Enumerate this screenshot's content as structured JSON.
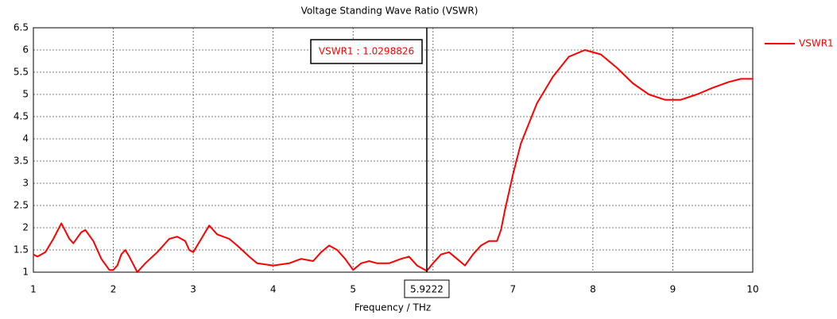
{
  "chart_data": {
    "type": "line",
    "title": "Voltage Standing Wave Ratio (VSWR)",
    "x_label": "Frequency / THz",
    "x": [
      1.0,
      1.05,
      1.15,
      1.25,
      1.35,
      1.45,
      1.5,
      1.6,
      1.65,
      1.75,
      1.85,
      1.95,
      2.0,
      2.05,
      2.1,
      2.15,
      2.2,
      2.3,
      2.4,
      2.55,
      2.7,
      2.8,
      2.9,
      2.95,
      3.0,
      3.1,
      3.2,
      3.3,
      3.45,
      3.55,
      3.7,
      3.8,
      4.0,
      4.2,
      4.35,
      4.5,
      4.6,
      4.7,
      4.8,
      4.9,
      5.0,
      5.1,
      5.2,
      5.3,
      5.45,
      5.6,
      5.7,
      5.8,
      5.9222,
      6.0,
      6.1,
      6.2,
      6.3,
      6.4,
      6.5,
      6.6,
      6.7,
      6.8,
      6.85,
      6.9,
      7.0,
      7.1,
      7.3,
      7.5,
      7.7,
      7.9,
      8.1,
      8.3,
      8.5,
      8.7,
      8.9,
      9.1,
      9.3,
      9.5,
      9.7,
      9.85,
      10.0
    ],
    "series": [
      {
        "name": "VSWR1",
        "color": "#ff0000",
        "values": [
          1.4,
          1.35,
          1.45,
          1.75,
          2.1,
          1.75,
          1.65,
          1.9,
          1.95,
          1.7,
          1.3,
          1.05,
          1.05,
          1.15,
          1.4,
          1.5,
          1.35,
          1.0,
          1.2,
          1.45,
          1.75,
          1.8,
          1.7,
          1.5,
          1.45,
          1.75,
          2.05,
          1.85,
          1.75,
          1.6,
          1.35,
          1.2,
          1.15,
          1.2,
          1.3,
          1.25,
          1.45,
          1.6,
          1.5,
          1.3,
          1.05,
          1.2,
          1.25,
          1.2,
          1.2,
          1.3,
          1.35,
          1.15,
          1.03,
          1.2,
          1.4,
          1.45,
          1.3,
          1.15,
          1.4,
          1.6,
          1.7,
          1.7,
          1.95,
          2.4,
          3.2,
          3.9,
          4.8,
          5.4,
          5.85,
          6.0,
          5.9,
          5.6,
          5.25,
          5.0,
          4.88,
          4.88,
          5.0,
          5.15,
          5.28,
          5.35,
          5.35
        ]
      }
    ],
    "xlim": [
      1,
      10
    ],
    "xticks": [
      1,
      2,
      3,
      4,
      5,
      6,
      7,
      8,
      9,
      10
    ],
    "ylim": [
      1,
      6.5
    ],
    "yticks": [
      1,
      1.5,
      2,
      2.5,
      3,
      3.5,
      4,
      4.5,
      5,
      5.5,
      6,
      6.5
    ],
    "grid": true,
    "legend": "right",
    "marker": {
      "x": 5.9222,
      "label": "VSWR1 : 1.0298826"
    }
  }
}
